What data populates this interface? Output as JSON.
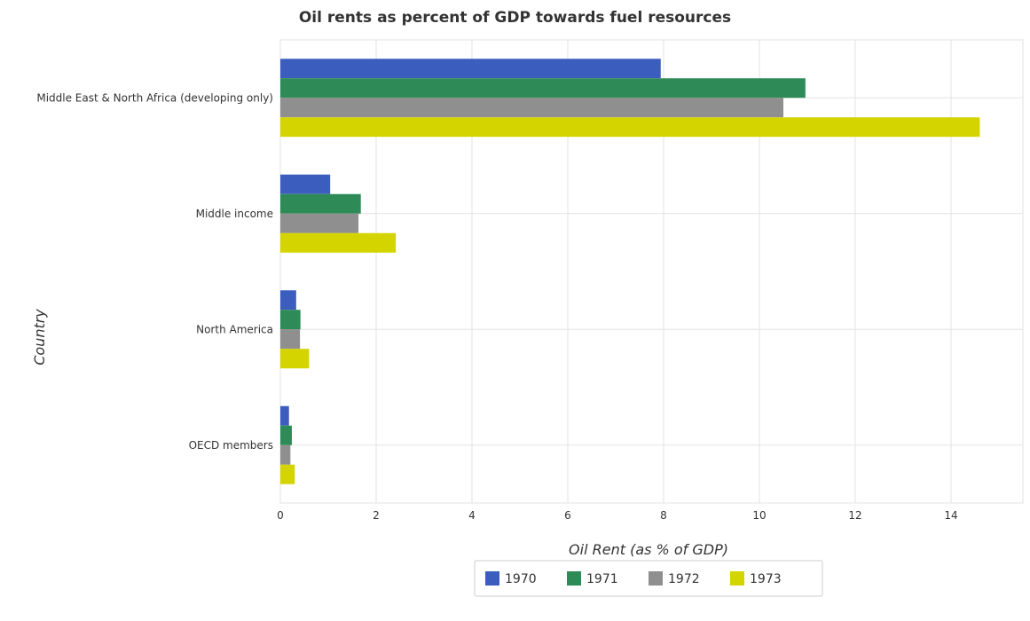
{
  "chart_data": {
    "type": "bar",
    "orientation": "horizontal",
    "title": "Oil rents as percent of GDP towards fuel resources",
    "xlabel": "Oil Rent (as % of GDP)",
    "ylabel": "Country",
    "categories": [
      "Middle East & North Africa (developing only)",
      "Middle income",
      "North America",
      "OECD members"
    ],
    "series": [
      {
        "name": "1970",
        "color": "#3b5ebe",
        "values": [
          7.94,
          1.04,
          0.33,
          0.18
        ]
      },
      {
        "name": "1971",
        "color": "#2e8b57",
        "values": [
          10.96,
          1.68,
          0.42,
          0.24
        ]
      },
      {
        "name": "1972",
        "color": "#8f8f8f",
        "values": [
          10.5,
          1.63,
          0.41,
          0.21
        ]
      },
      {
        "name": "1973",
        "color": "#d4d400",
        "values": [
          14.6,
          2.41,
          0.6,
          0.3
        ]
      }
    ],
    "xlim": [
      0,
      15.5
    ],
    "xticks": [
      0,
      2,
      4,
      6,
      8,
      10,
      12,
      14
    ],
    "grid": true,
    "legend_position": "bottom-center"
  }
}
